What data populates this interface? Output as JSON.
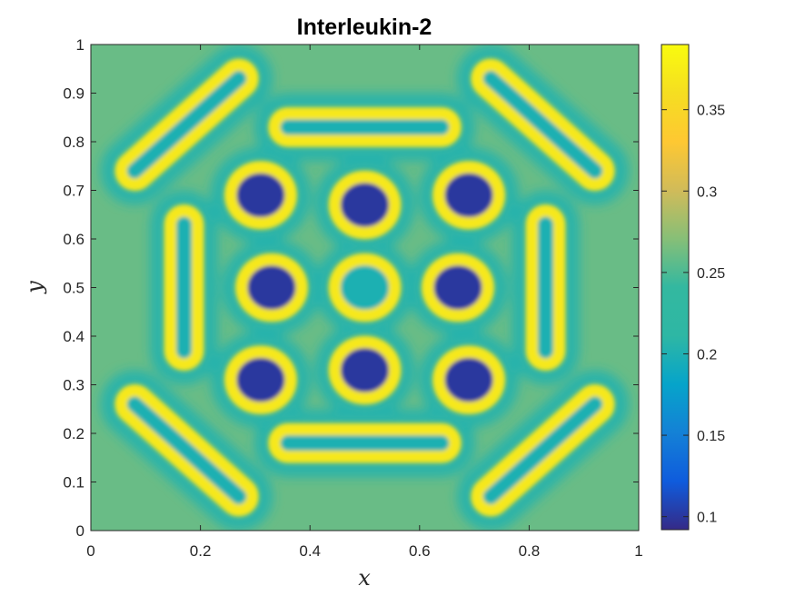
{
  "chart_data": {
    "type": "heatmap",
    "title": "Interleukin-2",
    "xlabel": "x",
    "ylabel": "y",
    "xlim": [
      0,
      1
    ],
    "ylim": [
      0,
      1
    ],
    "x_ticks": [
      0,
      0.2,
      0.4,
      0.6,
      0.8,
      1
    ],
    "x_tick_labels": [
      "0",
      "0.2",
      "0.4",
      "0.6",
      "0.8",
      "1"
    ],
    "y_ticks": [
      0,
      0.1,
      0.2,
      0.3,
      0.4,
      0.5,
      0.6,
      0.7,
      0.8,
      0.9,
      1
    ],
    "y_tick_labels": [
      "0",
      "0.1",
      "0.2",
      "0.3",
      "0.4",
      "0.5",
      "0.6",
      "0.7",
      "0.8",
      "0.9",
      "1"
    ],
    "colorbar": {
      "colormap": "parula",
      "clim": [
        0.092,
        0.39
      ],
      "ticks": [
        0.1,
        0.15,
        0.2,
        0.25,
        0.3,
        0.35
      ],
      "tick_labels": [
        "0.1",
        "0.15",
        "0.2",
        "0.25",
        "0.3",
        "0.35"
      ]
    },
    "grid": false,
    "symmetry": "four-fold symmetric pattern about the center (0.5, 0.5)",
    "features": [
      {
        "kind": "ring",
        "center": [
          0.5,
          0.5
        ],
        "value_rim": 0.37,
        "value_inside": 0.2
      },
      {
        "kind": "ring",
        "center": [
          0.5,
          0.67
        ],
        "value_rim": 0.37,
        "value_inside": 0.1
      },
      {
        "kind": "ring",
        "center": [
          0.5,
          0.33
        ],
        "value_rim": 0.37,
        "value_inside": 0.1
      },
      {
        "kind": "ring",
        "center": [
          0.33,
          0.5
        ],
        "value_rim": 0.37,
        "value_inside": 0.1
      },
      {
        "kind": "ring",
        "center": [
          0.67,
          0.5
        ],
        "value_rim": 0.37,
        "value_inside": 0.1
      },
      {
        "kind": "ring",
        "center": [
          0.31,
          0.69
        ],
        "value_rim": 0.37,
        "value_inside": 0.1
      },
      {
        "kind": "ring",
        "center": [
          0.69,
          0.69
        ],
        "value_rim": 0.37,
        "value_inside": 0.1
      },
      {
        "kind": "ring",
        "center": [
          0.31,
          0.31
        ],
        "value_rim": 0.37,
        "value_inside": 0.1
      },
      {
        "kind": "ring",
        "center": [
          0.69,
          0.31
        ],
        "value_rim": 0.37,
        "value_inside": 0.1
      },
      {
        "kind": "elongated-ring",
        "from": [
          0.36,
          0.83
        ],
        "to": [
          0.64,
          0.83
        ],
        "value_rim": 0.37
      },
      {
        "kind": "elongated-ring",
        "from": [
          0.36,
          0.18
        ],
        "to": [
          0.64,
          0.18
        ],
        "value_rim": 0.37
      },
      {
        "kind": "elongated-ring",
        "from": [
          0.17,
          0.37
        ],
        "to": [
          0.17,
          0.63
        ],
        "value_rim": 0.37
      },
      {
        "kind": "elongated-ring",
        "from": [
          0.83,
          0.37
        ],
        "to": [
          0.83,
          0.63
        ],
        "value_rim": 0.37
      },
      {
        "kind": "elongated-ring",
        "from": [
          0.08,
          0.74
        ],
        "to": [
          0.27,
          0.93
        ],
        "value_rim": 0.37
      },
      {
        "kind": "elongated-ring",
        "from": [
          0.73,
          0.93
        ],
        "to": [
          0.92,
          0.74
        ],
        "value_rim": 0.37
      },
      {
        "kind": "elongated-ring",
        "from": [
          0.08,
          0.26
        ],
        "to": [
          0.27,
          0.07
        ],
        "value_rim": 0.37
      },
      {
        "kind": "elongated-ring",
        "from": [
          0.73,
          0.07
        ],
        "to": [
          0.92,
          0.26
        ],
        "value_rim": 0.37
      }
    ],
    "background_value": 0.26
  }
}
